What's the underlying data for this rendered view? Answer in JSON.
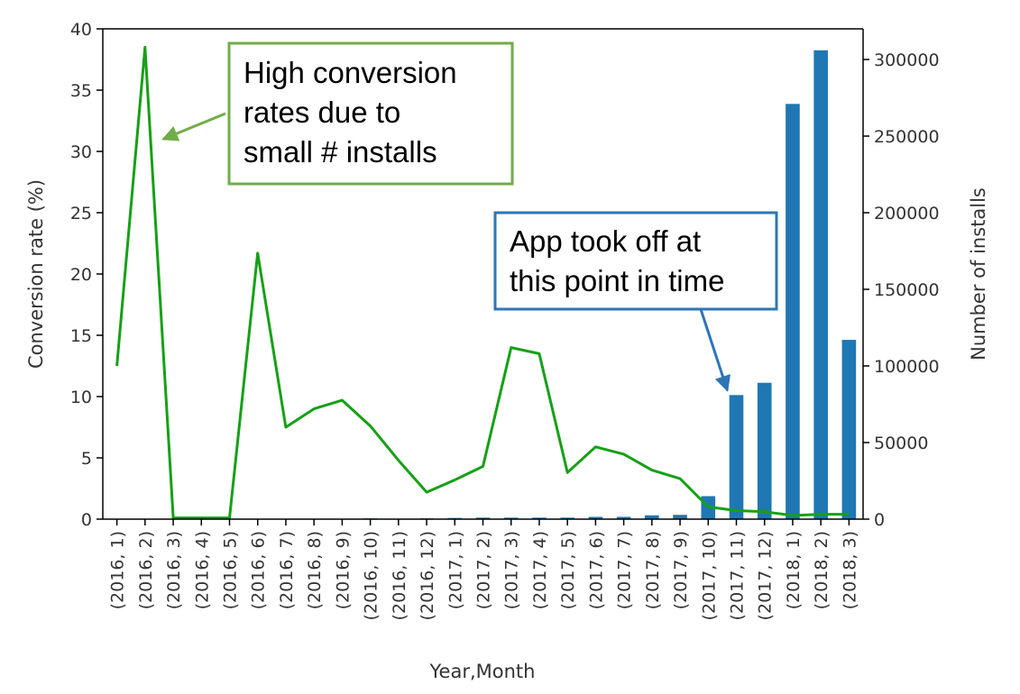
{
  "chart_data": {
    "type": "bar+line",
    "categories": [
      "(2016, 1)",
      "(2016, 2)",
      "(2016, 3)",
      "(2016, 4)",
      "(2016, 5)",
      "(2016, 6)",
      "(2016, 7)",
      "(2016, 8)",
      "(2016, 9)",
      "(2016, 10)",
      "(2016, 11)",
      "(2016, 12)",
      "(2017, 1)",
      "(2017, 2)",
      "(2017, 3)",
      "(2017, 4)",
      "(2017, 5)",
      "(2017, 6)",
      "(2017, 7)",
      "(2017, 8)",
      "(2017, 9)",
      "(2017, 10)",
      "(2017, 11)",
      "(2017, 12)",
      "(2018, 1)",
      "(2018, 2)",
      "(2018, 3)"
    ],
    "series": [
      {
        "kind": "line",
        "axis": "left",
        "color": "#16a016",
        "values": [
          12.5,
          38.5,
          0.1,
          0.1,
          0.1,
          21.7,
          7.5,
          9.0,
          9.7,
          7.6,
          4.8,
          2.2,
          3.2,
          4.3,
          14.0,
          13.5,
          3.8,
          5.9,
          5.3,
          4.0,
          3.3,
          1.0,
          0.7,
          0.6,
          0.3,
          0.4,
          0.4
        ]
      },
      {
        "kind": "bar",
        "axis": "right",
        "color": "#1f77b4",
        "values": [
          0,
          0,
          0,
          0,
          0,
          0,
          0,
          0,
          0,
          500,
          0,
          500,
          800,
          1000,
          1000,
          1000,
          1000,
          1500,
          1500,
          2500,
          2800,
          15000,
          81000,
          89000,
          271000,
          306000,
          117000
        ]
      }
    ],
    "xlabel": "Year,Month",
    "ylabel_left": "Conversion rate (%)",
    "ylabel_right": "Number of installs",
    "ylim_left": [
      0,
      40
    ],
    "ylim_right": [
      0,
      320000
    ],
    "yticks_left": [
      0,
      5,
      10,
      15,
      20,
      25,
      30,
      35,
      40
    ],
    "yticks_right": [
      0,
      50000,
      100000,
      150000,
      200000,
      250000,
      300000
    ],
    "grid": false,
    "annotations": [
      {
        "lines": [
          "High conversion",
          "rates due to",
          "small # installs"
        ],
        "border_color": "#70ad47",
        "arrow_color": "#70ad47",
        "points_to": {
          "category_index": 1,
          "axis": "left",
          "value": 31
        }
      },
      {
        "lines": [
          "App took off at",
          "this point in time"
        ],
        "border_color": "#2e75b6",
        "arrow_color": "#2e75b6",
        "points_to": {
          "category_index": 22,
          "axis": "right",
          "value": 84000
        }
      }
    ]
  }
}
